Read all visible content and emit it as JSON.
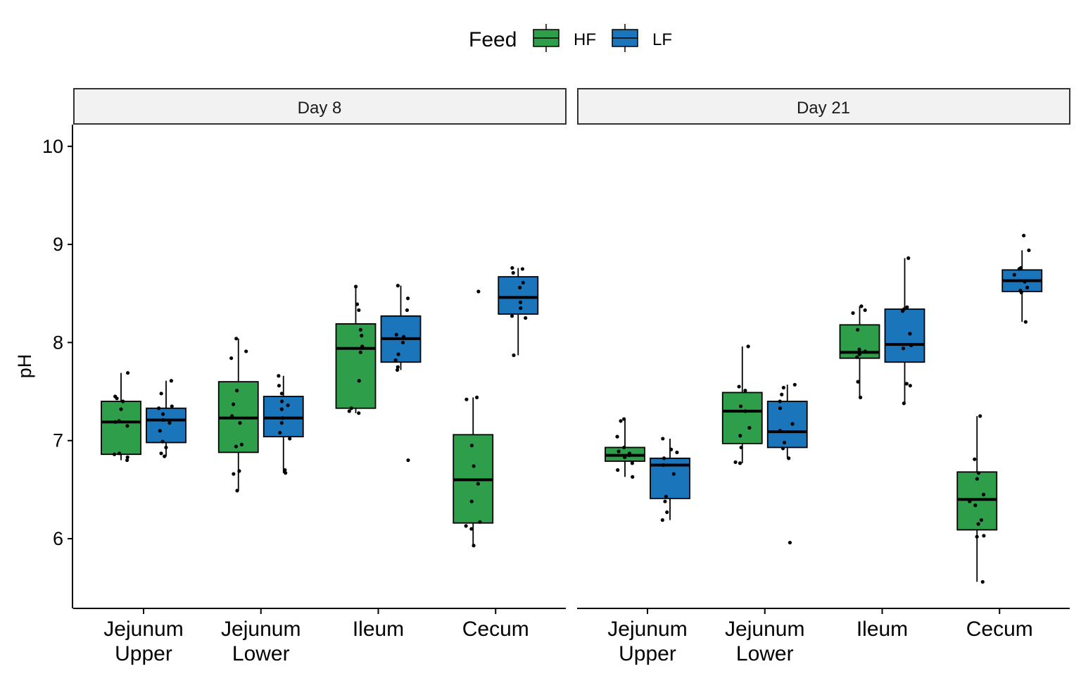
{
  "chart_data": {
    "type": "boxplot",
    "ylabel": "pH",
    "xlabel": "",
    "ylim": [
      5.3,
      10.2
    ],
    "yticks": [
      6,
      7,
      8,
      9,
      10
    ],
    "grid": false,
    "legend": {
      "title": "Feed",
      "position": "top",
      "entries": [
        {
          "name": "HF",
          "color": "#2E9E4A"
        },
        {
          "name": "LF",
          "color": "#1B75BB"
        }
      ]
    },
    "categories": [
      [
        "Jejunum",
        "Upper"
      ],
      [
        "Jejunum",
        "Lower"
      ],
      [
        "Ileum"
      ],
      [
        "Cecum"
      ]
    ],
    "panels": [
      {
        "label": "Day 8",
        "boxes": [
          {
            "category": 0,
            "feed": "HF",
            "whisker_low": 6.8,
            "q1": 6.86,
            "median": 7.19,
            "q3": 7.4,
            "whisker_high": 7.69,
            "points": [
              6.8,
              6.83,
              6.86,
              6.87,
              7.15,
              7.19,
              7.2,
              7.32,
              7.4,
              7.43,
              7.45,
              7.69
            ]
          },
          {
            "category": 0,
            "feed": "LF",
            "whisker_low": 6.84,
            "q1": 6.98,
            "median": 7.21,
            "q3": 7.33,
            "whisker_high": 7.61,
            "points": [
              6.84,
              6.87,
              6.93,
              6.99,
              7.1,
              7.18,
              7.21,
              7.27,
              7.33,
              7.35,
              7.48,
              7.61
            ]
          },
          {
            "category": 1,
            "feed": "HF",
            "whisker_low": 6.49,
            "q1": 6.88,
            "median": 7.23,
            "q3": 7.6,
            "whisker_high": 8.04,
            "points": [
              6.49,
              6.66,
              6.69,
              6.94,
              6.96,
              7.18,
              7.25,
              7.37,
              7.51,
              7.84,
              7.91,
              8.04
            ]
          },
          {
            "category": 1,
            "feed": "LF",
            "whisker_low": 6.67,
            "q1": 7.04,
            "median": 7.23,
            "q3": 7.45,
            "whisker_high": 7.66,
            "points": [
              6.67,
              6.7,
              7.02,
              7.08,
              7.18,
              7.23,
              7.32,
              7.36,
              7.4,
              7.48,
              7.56,
              7.66
            ]
          },
          {
            "category": 2,
            "feed": "HF",
            "whisker_low": 7.28,
            "q1": 7.33,
            "median": 7.94,
            "q3": 8.19,
            "whisker_high": 8.57,
            "points": [
              7.28,
              7.3,
              7.33,
              7.61,
              7.9,
              7.96,
              8.07,
              8.13,
              8.33,
              8.39,
              8.57
            ]
          },
          {
            "category": 2,
            "feed": "LF",
            "whisker_low": 7.72,
            "q1": 7.8,
            "median": 8.04,
            "q3": 8.27,
            "whisker_high": 8.58,
            "points": [
              6.8,
              7.72,
              7.75,
              7.82,
              7.88,
              8.0,
              8.06,
              8.08,
              8.33,
              8.45,
              8.58
            ]
          },
          {
            "category": 3,
            "feed": "HF",
            "whisker_low": 5.93,
            "q1": 6.16,
            "median": 6.6,
            "q3": 7.06,
            "whisker_high": 7.44,
            "points": [
              5.93,
              6.1,
              6.13,
              6.17,
              6.38,
              6.56,
              6.74,
              6.95,
              7.42,
              7.44,
              8.52
            ]
          },
          {
            "category": 3,
            "feed": "LF",
            "whisker_low": 7.87,
            "q1": 8.29,
            "median": 8.46,
            "q3": 8.67,
            "whisker_high": 8.76,
            "points": [
              7.87,
              8.25,
              8.27,
              8.35,
              8.41,
              8.56,
              8.61,
              8.71,
              8.75,
              8.76
            ]
          }
        ]
      },
      {
        "label": "Day 21",
        "boxes": [
          {
            "category": 0,
            "feed": "HF",
            "whisker_low": 6.63,
            "q1": 6.79,
            "median": 6.85,
            "q3": 6.93,
            "whisker_high": 7.21,
            "points": [
              6.63,
              6.7,
              6.77,
              6.83,
              6.85,
              6.87,
              6.89,
              6.93,
              7.04,
              7.2,
              7.22
            ]
          },
          {
            "category": 0,
            "feed": "LF",
            "whisker_low": 6.19,
            "q1": 6.41,
            "median": 6.75,
            "q3": 6.82,
            "whisker_high": 7.02,
            "points": [
              6.19,
              6.27,
              6.38,
              6.43,
              6.66,
              6.75,
              6.82,
              6.88,
              6.91,
              7.02
            ]
          },
          {
            "category": 1,
            "feed": "HF",
            "whisker_low": 6.77,
            "q1": 6.97,
            "median": 7.3,
            "q3": 7.49,
            "whisker_high": 7.96,
            "points": [
              6.77,
              6.78,
              6.93,
              7.05,
              7.13,
              7.3,
              7.35,
              7.51,
              7.55,
              7.96
            ]
          },
          {
            "category": 1,
            "feed": "LF",
            "whisker_low": 6.82,
            "q1": 6.93,
            "median": 7.09,
            "q3": 7.4,
            "whisker_high": 7.57,
            "points": [
              5.96,
              6.82,
              6.92,
              6.98,
              7.1,
              7.17,
              7.33,
              7.4,
              7.47,
              7.54,
              7.57
            ]
          },
          {
            "category": 2,
            "feed": "HF",
            "whisker_low": 7.44,
            "q1": 7.84,
            "median": 7.9,
            "q3": 8.18,
            "whisker_high": 8.37,
            "points": [
              7.44,
              7.6,
              7.85,
              7.88,
              7.91,
              7.93,
              8.13,
              8.3,
              8.33,
              8.37
            ]
          },
          {
            "category": 2,
            "feed": "LF",
            "whisker_low": 7.38,
            "q1": 7.8,
            "median": 7.98,
            "q3": 8.34,
            "whisker_high": 8.86,
            "points": [
              7.38,
              7.56,
              7.58,
              7.94,
              7.97,
              8.09,
              8.32,
              8.34,
              8.36,
              8.86
            ]
          },
          {
            "category": 3,
            "feed": "HF",
            "whisker_low": 5.56,
            "q1": 6.09,
            "median": 6.4,
            "q3": 6.68,
            "whisker_high": 7.25,
            "points": [
              5.56,
              6.02,
              6.03,
              6.15,
              6.19,
              6.34,
              6.38,
              6.45,
              6.61,
              6.67,
              6.81,
              7.25
            ]
          },
          {
            "category": 3,
            "feed": "LF",
            "whisker_low": 8.21,
            "q1": 8.52,
            "median": 8.63,
            "q3": 8.74,
            "whisker_high": 8.94,
            "points": [
              8.21,
              8.51,
              8.53,
              8.56,
              8.62,
              8.69,
              8.75,
              8.76,
              8.94,
              9.09
            ]
          }
        ]
      }
    ]
  }
}
